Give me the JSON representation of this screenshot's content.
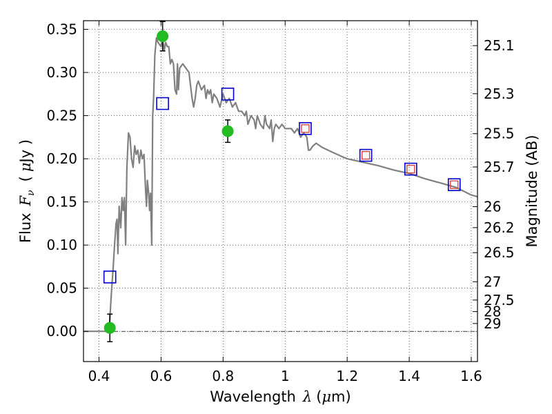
{
  "chart_data": {
    "type": "scatter",
    "xlabel": {
      "text": "Wavelength",
      "symbol": "λ",
      "unit_open": "(",
      "unit_mu": "μ",
      "unit_rest": "m)"
    },
    "ylabel": {
      "text": "Flux",
      "symbol": "F",
      "sub": "ν",
      "unit_open": "(",
      "unit_mu": "μ",
      "unit_rest": "Jy )"
    },
    "y2label": "Magnitude (AB)",
    "xlim": [
      0.35,
      1.62
    ],
    "ylim": [
      -0.035,
      0.36
    ],
    "xticks": [
      0.4,
      0.6,
      0.8,
      1.0,
      1.2,
      1.4,
      1.6
    ],
    "xtick_labels": [
      "0.4",
      "0.6",
      "0.8",
      "1",
      "1.2",
      "1.4",
      "1.6"
    ],
    "yticks": [
      0.0,
      0.05,
      0.1,
      0.15,
      0.2,
      0.25,
      0.3,
      0.35
    ],
    "ytick_labels": [
      "0.00",
      "0.05",
      "0.10",
      "0.15",
      "0.20",
      "0.25",
      "0.30",
      "0.35"
    ],
    "y2ticks": [
      {
        "label": "25.1",
        "flux": 0.3311
      },
      {
        "label": "25.3",
        "flux": 0.2754
      },
      {
        "label": "25.5",
        "flux": 0.2291
      },
      {
        "label": "25.7",
        "flux": 0.1905
      },
      {
        "label": "26",
        "flux": 0.1445
      },
      {
        "label": "26.2",
        "flux": 0.1202
      },
      {
        "label": "26.5",
        "flux": 0.0912
      },
      {
        "label": "27",
        "flux": 0.0575
      },
      {
        "label": "27.5",
        "flux": 0.0363
      },
      {
        "label": "28",
        "flux": 0.0229
      },
      {
        "label": "29",
        "flux": 0.0091
      }
    ],
    "grid": true,
    "zero_line": true,
    "series": [
      {
        "kind": "line",
        "color": "#808080",
        "points": [
          [
            0.35,
            0.0
          ],
          [
            0.43,
            0.0
          ],
          [
            0.434,
            0.01
          ],
          [
            0.44,
            0.045
          ],
          [
            0.445,
            0.07
          ],
          [
            0.45,
            0.1
          ],
          [
            0.455,
            0.125
          ],
          [
            0.458,
            0.13
          ],
          [
            0.461,
            0.09
          ],
          [
            0.465,
            0.145
          ],
          [
            0.47,
            0.12
          ],
          [
            0.474,
            0.155
          ],
          [
            0.478,
            0.14
          ],
          [
            0.482,
            0.155
          ],
          [
            0.486,
            0.1
          ],
          [
            0.49,
            0.19
          ],
          [
            0.495,
            0.23
          ],
          [
            0.5,
            0.225
          ],
          [
            0.505,
            0.2
          ],
          [
            0.51,
            0.19
          ],
          [
            0.515,
            0.215
          ],
          [
            0.52,
            0.205
          ],
          [
            0.525,
            0.21
          ],
          [
            0.53,
            0.195
          ],
          [
            0.535,
            0.21
          ],
          [
            0.54,
            0.2
          ],
          [
            0.545,
            0.205
          ],
          [
            0.55,
            0.165
          ],
          [
            0.553,
            0.145
          ],
          [
            0.556,
            0.175
          ],
          [
            0.56,
            0.16
          ],
          [
            0.563,
            0.14
          ],
          [
            0.566,
            0.16
          ],
          [
            0.57,
            0.1
          ],
          [
            0.573,
            0.25
          ],
          [
            0.576,
            0.27
          ],
          [
            0.58,
            0.32
          ],
          [
            0.585,
            0.34
          ],
          [
            0.59,
            0.335
          ],
          [
            0.6,
            0.33
          ],
          [
            0.605,
            0.34
          ],
          [
            0.61,
            0.325
          ],
          [
            0.615,
            0.335
          ],
          [
            0.62,
            0.33
          ],
          [
            0.625,
            0.33
          ],
          [
            0.63,
            0.31
          ],
          [
            0.635,
            0.315
          ],
          [
            0.64,
            0.31
          ],
          [
            0.645,
            0.28
          ],
          [
            0.65,
            0.275
          ],
          [
            0.653,
            0.31
          ],
          [
            0.656,
            0.28
          ],
          [
            0.66,
            0.305
          ],
          [
            0.67,
            0.31
          ],
          [
            0.68,
            0.305
          ],
          [
            0.69,
            0.3
          ],
          [
            0.695,
            0.285
          ],
          [
            0.7,
            0.27
          ],
          [
            0.705,
            0.26
          ],
          [
            0.71,
            0.27
          ],
          [
            0.715,
            0.285
          ],
          [
            0.72,
            0.29
          ],
          [
            0.73,
            0.28
          ],
          [
            0.74,
            0.285
          ],
          [
            0.745,
            0.27
          ],
          [
            0.75,
            0.28
          ],
          [
            0.755,
            0.275
          ],
          [
            0.76,
            0.28
          ],
          [
            0.765,
            0.265
          ],
          [
            0.77,
            0.275
          ],
          [
            0.78,
            0.27
          ],
          [
            0.79,
            0.26
          ],
          [
            0.8,
            0.275
          ],
          [
            0.81,
            0.265
          ],
          [
            0.82,
            0.27
          ],
          [
            0.83,
            0.26
          ],
          [
            0.84,
            0.265
          ],
          [
            0.85,
            0.255
          ],
          [
            0.86,
            0.255
          ],
          [
            0.87,
            0.25
          ],
          [
            0.875,
            0.255
          ],
          [
            0.88,
            0.24
          ],
          [
            0.89,
            0.25
          ],
          [
            0.9,
            0.245
          ],
          [
            0.905,
            0.235
          ],
          [
            0.91,
            0.25
          ],
          [
            0.92,
            0.24
          ],
          [
            0.93,
            0.235
          ],
          [
            0.935,
            0.25
          ],
          [
            0.94,
            0.24
          ],
          [
            0.95,
            0.235
          ],
          [
            0.955,
            0.245
          ],
          [
            0.96,
            0.22
          ],
          [
            0.965,
            0.235
          ],
          [
            0.97,
            0.24
          ],
          [
            0.98,
            0.235
          ],
          [
            0.99,
            0.24
          ],
          [
            1.0,
            0.235
          ],
          [
            1.01,
            0.235
          ],
          [
            1.02,
            0.235
          ],
          [
            1.03,
            0.23
          ],
          [
            1.04,
            0.235
          ],
          [
            1.05,
            0.225
          ],
          [
            1.06,
            0.23
          ],
          [
            1.07,
            0.225
          ],
          [
            1.075,
            0.21
          ],
          [
            1.08,
            0.21
          ],
          [
            1.09,
            0.215
          ],
          [
            1.1,
            0.218
          ],
          [
            1.12,
            0.213
          ],
          [
            1.15,
            0.208
          ],
          [
            1.18,
            0.203
          ],
          [
            1.2,
            0.2
          ],
          [
            1.25,
            0.196
          ],
          [
            1.3,
            0.192
          ],
          [
            1.35,
            0.187
          ],
          [
            1.4,
            0.183
          ],
          [
            1.45,
            0.177
          ],
          [
            1.5,
            0.172
          ],
          [
            1.55,
            0.167
          ],
          [
            1.6,
            0.158
          ],
          [
            1.62,
            0.156
          ]
        ]
      },
      {
        "kind": "open-square",
        "name": "",
        "color": "#0000cc",
        "points": [
          [
            0.435,
            0.063
          ],
          [
            0.605,
            0.264
          ],
          [
            0.815,
            0.275
          ],
          [
            1.065,
            0.235
          ],
          [
            1.26,
            0.204
          ],
          [
            1.405,
            0.188
          ],
          [
            1.545,
            0.17
          ]
        ]
      },
      {
        "kind": "open-square-small",
        "name": "",
        "color": "#dd4444",
        "points": [
          [
            1.065,
            0.235
          ],
          [
            1.26,
            0.204
          ],
          [
            1.405,
            0.188
          ],
          [
            1.545,
            0.17
          ]
        ]
      },
      {
        "kind": "filled-circle",
        "name": "",
        "color": "#22bb22",
        "points": [
          {
            "x": 0.435,
            "y": 0.004,
            "err": 0.016
          },
          {
            "x": 0.605,
            "y": 0.342,
            "err": 0.017
          },
          {
            "x": 0.815,
            "y": 0.232,
            "err": 0.013
          }
        ]
      }
    ]
  }
}
